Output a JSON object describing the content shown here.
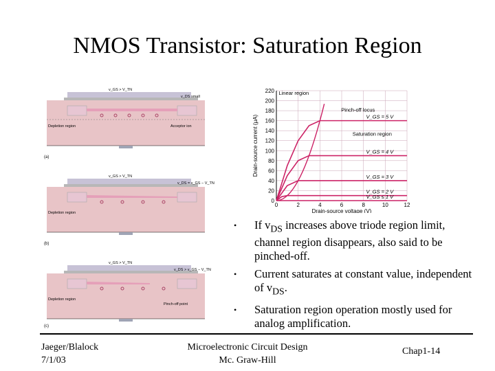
{
  "title": "NMOS Transistor: Saturation Region",
  "bullets": [
    {
      "pre": "If v",
      "sub": "DS",
      "post": " increases above triode region limit, channel region disappears, also said to be pinched-off."
    },
    {
      "pre": "Current saturates at constant value, independent of v",
      "sub": "DS",
      "post": "."
    },
    {
      "pre": "Saturation region operation mostly used for analog amplification.",
      "sub": "",
      "post": ""
    }
  ],
  "footer": {
    "left_line1": "Jaeger/Blalock",
    "left_line2": "7/1/03",
    "center_line1": "Microelectronic Circuit Design",
    "center_line2": "Mc. Graw-Hill",
    "right": "Chap1-14"
  },
  "cross_sections": [
    {
      "label": "(a)",
      "drain_note": "v_DS small",
      "gate_note": "v_GS > V_TN",
      "region_label": "Depletion region",
      "ion_label": "Acceptor ion"
    },
    {
      "label": "(b)",
      "drain_note": "v_DS = v_GS − V_TN",
      "gate_note": "v_GS > V_TN",
      "region_label": "Depletion region",
      "ion_label": ""
    },
    {
      "label": "(c)",
      "drain_note": "v_DS > v_GS − V_TN",
      "gate_note": "v_GS > V_TN",
      "region_label": "Depletion region",
      "ion_label": "Pinch-off point"
    }
  ],
  "chart_data": {
    "type": "line",
    "xlabel": "Drain-source voltage (V)",
    "ylabel": "Drain-source current (μA)",
    "xlim": [
      0,
      12
    ],
    "ylim": [
      0,
      220
    ],
    "xticks": [
      "0",
      "2",
      "4",
      "6",
      "8",
      "10",
      "12"
    ],
    "yticks": [
      "0",
      "20",
      "40",
      "60",
      "80",
      "100",
      "120",
      "140",
      "160",
      "180",
      "200",
      "220"
    ],
    "annotations": [
      "Linear region",
      "Pinch-off locus",
      "Saturation region"
    ],
    "series": [
      {
        "name": "V_GS = 5 V",
        "x": [
          0,
          1,
          2,
          3,
          4,
          12
        ],
        "y": [
          0,
          70,
          120,
          150,
          160,
          160
        ]
      },
      {
        "name": "V_GS = 4 V",
        "x": [
          0,
          1,
          2,
          3,
          12
        ],
        "y": [
          0,
          50,
          80,
          90,
          90
        ]
      },
      {
        "name": "V_GS = 3 V",
        "x": [
          0,
          1,
          2,
          12
        ],
        "y": [
          0,
          30,
          40,
          40
        ]
      },
      {
        "name": "V_GS = 2 V",
        "x": [
          0,
          0.5,
          1,
          12
        ],
        "y": [
          0,
          8,
          10,
          10
        ]
      },
      {
        "name": "V_GS ≤ 1 V",
        "x": [
          0,
          12
        ],
        "y": [
          0,
          0
        ]
      }
    ]
  }
}
